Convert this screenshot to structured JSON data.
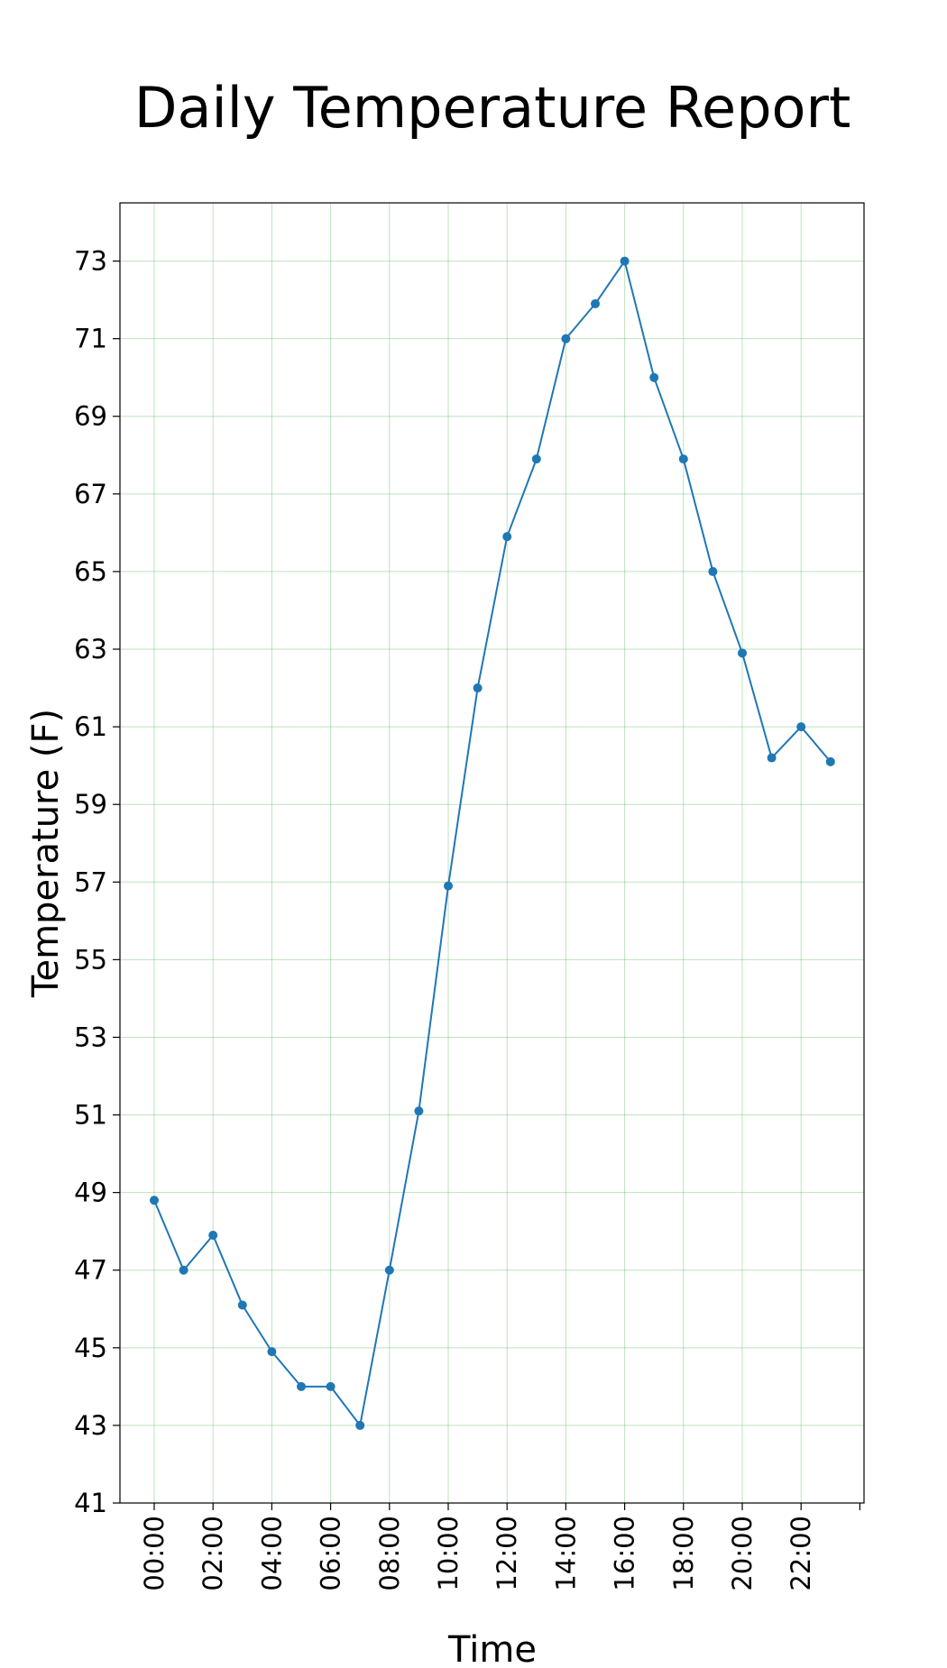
{
  "chart_data": {
    "type": "line",
    "title": "Daily Temperature Report",
    "xlabel": "Time",
    "ylabel": "Temperature (F)",
    "x": [
      "00:00",
      "01:00",
      "02:00",
      "03:00",
      "04:00",
      "05:00",
      "06:00",
      "07:00",
      "08:00",
      "09:00",
      "10:00",
      "11:00",
      "12:00",
      "13:00",
      "14:00",
      "15:00",
      "16:00",
      "17:00",
      "18:00",
      "19:00",
      "20:00",
      "21:00",
      "22:00",
      "23:00"
    ],
    "x_tick_labels": [
      "00:00",
      "02:00",
      "04:00",
      "06:00",
      "08:00",
      "10:00",
      "12:00",
      "14:00",
      "16:00",
      "18:00",
      "20:00",
      "22:00"
    ],
    "y_ticks": [
      41,
      43,
      45,
      47,
      49,
      51,
      53,
      55,
      57,
      59,
      61,
      63,
      65,
      67,
      69,
      71,
      73
    ],
    "series": [
      {
        "values": [
          48.8,
          47.0,
          47.9,
          46.1,
          44.9,
          44.0,
          44.0,
          43.0,
          47.0,
          51.1,
          56.9,
          62.0,
          65.9,
          67.9,
          71.0,
          71.9,
          73.0,
          70.0,
          67.9,
          65.0,
          62.9,
          60.2,
          61.0,
          60.1
        ],
        "color": "#1f77b4",
        "marker": "circle"
      }
    ],
    "ylim": [
      41,
      74.5
    ],
    "grid": true,
    "grid_color": "#2ca02c",
    "legend": "none"
  }
}
